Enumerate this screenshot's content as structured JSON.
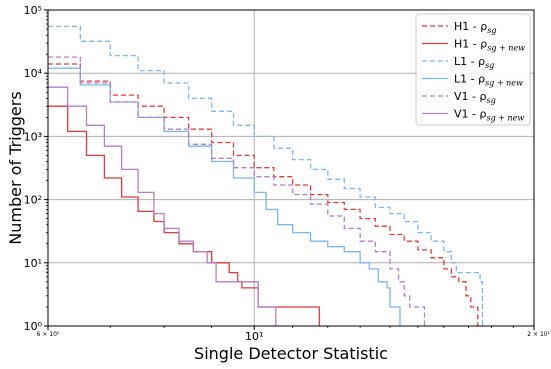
{
  "chart_data": {
    "type": "line",
    "title": "",
    "xlabel": "Single Detector Statistic",
    "ylabel": "Number of Triggers",
    "xscale": "log",
    "yscale": "log",
    "xlim": [
      6,
      20
    ],
    "ylim": [
      1,
      100000
    ],
    "grid": true,
    "legend_position": "top-right",
    "x_ticks": [
      {
        "value": 6,
        "label": "6 × 10⁰",
        "size": "small"
      },
      {
        "value": 10,
        "label": "10¹",
        "size": "normal"
      },
      {
        "value": 20,
        "label": "2 × 10¹",
        "size": "small"
      }
    ],
    "y_ticks": [
      {
        "value": 1,
        "label": "10⁰"
      },
      {
        "value": 10,
        "label": "10¹"
      },
      {
        "value": 100,
        "label": "10²"
      },
      {
        "value": 1000,
        "label": "10³"
      },
      {
        "value": 10000,
        "label": "10⁴"
      },
      {
        "value": 100000,
        "label": "10⁵"
      }
    ],
    "series": [
      {
        "name": "H1 -  ρ",
        "subscript": "sg",
        "color": "#e8383b",
        "dashed": true,
        "points": [
          [
            6.0,
            14000
          ],
          [
            6.5,
            7500
          ],
          [
            7.0,
            4500
          ],
          [
            7.5,
            3000
          ],
          [
            8.0,
            2000
          ],
          [
            8.5,
            1300
          ],
          [
            9.0,
            800
          ],
          [
            9.5,
            500
          ],
          [
            10.0,
            320
          ],
          [
            10.5,
            230
          ],
          [
            11.0,
            170
          ],
          [
            11.5,
            120
          ],
          [
            12.0,
            90
          ],
          [
            12.5,
            70
          ],
          [
            13.0,
            50
          ],
          [
            13.5,
            38
          ],
          [
            14.0,
            28
          ],
          [
            14.5,
            22
          ],
          [
            15.0,
            16
          ],
          [
            15.5,
            12
          ],
          [
            16.0,
            8
          ],
          [
            16.3,
            6
          ],
          [
            16.6,
            5
          ],
          [
            16.9,
            3
          ],
          [
            17.1,
            2
          ],
          [
            17.35,
            2
          ],
          [
            17.4,
            1
          ]
        ]
      },
      {
        "name": "H1 -  ρ",
        "subscript": "sg + new",
        "color": "#e8383b",
        "dashed": false,
        "points": [
          [
            6.0,
            3000
          ],
          [
            6.3,
            1200
          ],
          [
            6.6,
            500
          ],
          [
            6.9,
            220
          ],
          [
            7.2,
            110
          ],
          [
            7.5,
            65
          ],
          [
            7.8,
            45
          ],
          [
            8.0,
            30
          ],
          [
            8.3,
            20
          ],
          [
            8.6,
            15
          ],
          [
            9.0,
            10
          ],
          [
            9.4,
            7
          ],
          [
            9.6,
            5
          ],
          [
            9.7,
            4
          ],
          [
            10.0,
            4
          ],
          [
            10.1,
            2
          ],
          [
            11.0,
            2
          ],
          [
            11.7,
            2
          ],
          [
            11.75,
            1
          ]
        ]
      },
      {
        "name": "L1 -  ρ",
        "subscript": "sg",
        "color": "#7ab8ee",
        "dashed": true,
        "points": [
          [
            6.0,
            55000
          ],
          [
            6.5,
            32000
          ],
          [
            7.0,
            19000
          ],
          [
            7.5,
            11000
          ],
          [
            8.0,
            7000
          ],
          [
            8.5,
            4000
          ],
          [
            9.0,
            2500
          ],
          [
            9.5,
            1500
          ],
          [
            10.0,
            1000
          ],
          [
            10.5,
            650
          ],
          [
            11.0,
            430
          ],
          [
            11.5,
            300
          ],
          [
            12.0,
            210
          ],
          [
            12.5,
            150
          ],
          [
            13.0,
            110
          ],
          [
            13.5,
            75
          ],
          [
            14.0,
            60
          ],
          [
            14.5,
            45
          ],
          [
            15.0,
            30
          ],
          [
            15.5,
            22
          ],
          [
            16.0,
            15
          ],
          [
            16.3,
            10
          ],
          [
            16.5,
            7
          ],
          [
            17.0,
            7
          ],
          [
            17.3,
            7
          ],
          [
            17.5,
            5
          ],
          [
            17.6,
            1
          ]
        ]
      },
      {
        "name": "L1 -  ρ",
        "subscript": "sg + new",
        "color": "#7ab8ee",
        "dashed": false,
        "points": [
          [
            6.0,
            12000
          ],
          [
            6.5,
            6500
          ],
          [
            7.0,
            3500
          ],
          [
            7.5,
            2000
          ],
          [
            8.0,
            1200
          ],
          [
            8.5,
            700
          ],
          [
            9.0,
            400
          ],
          [
            9.5,
            220
          ],
          [
            10.0,
            130
          ],
          [
            10.3,
            70
          ],
          [
            10.6,
            40
          ],
          [
            11.0,
            30
          ],
          [
            11.5,
            22
          ],
          [
            12.0,
            18
          ],
          [
            12.5,
            15
          ],
          [
            13.0,
            10
          ],
          [
            13.3,
            8
          ],
          [
            13.6,
            5
          ],
          [
            13.9,
            4
          ],
          [
            14.0,
            2
          ],
          [
            14.3,
            2
          ],
          [
            14.35,
            1
          ]
        ]
      },
      {
        "name": "V1 -  ρ",
        "subscript": "sg",
        "color": "#b57fc9",
        "dashed": true,
        "points": [
          [
            6.0,
            18000
          ],
          [
            6.5,
            7000
          ],
          [
            7.0,
            3500
          ],
          [
            7.5,
            2000
          ],
          [
            8.0,
            1300
          ],
          [
            8.5,
            750
          ],
          [
            9.0,
            450
          ],
          [
            9.5,
            320
          ],
          [
            10.0,
            230
          ],
          [
            10.5,
            170
          ],
          [
            11.0,
            120
          ],
          [
            11.5,
            85
          ],
          [
            12.0,
            55
          ],
          [
            12.5,
            35
          ],
          [
            13.0,
            22
          ],
          [
            13.5,
            15
          ],
          [
            14.0,
            8
          ],
          [
            14.3,
            5
          ],
          [
            14.5,
            3
          ],
          [
            14.7,
            2
          ],
          [
            15.2,
            2
          ],
          [
            15.25,
            1
          ]
        ]
      },
      {
        "name": "V1 -  ρ",
        "subscript": "sg + new",
        "color": "#b57fc9",
        "dashed": false,
        "points": [
          [
            6.0,
            6000
          ],
          [
            6.3,
            3000
          ],
          [
            6.6,
            1500
          ],
          [
            6.9,
            700
          ],
          [
            7.2,
            300
          ],
          [
            7.5,
            130
          ],
          [
            7.8,
            60
          ],
          [
            8.0,
            35
          ],
          [
            8.3,
            22
          ],
          [
            8.6,
            15
          ],
          [
            8.9,
            10
          ],
          [
            9.1,
            5
          ],
          [
            9.5,
            5
          ],
          [
            10.0,
            5
          ],
          [
            10.1,
            2
          ],
          [
            10.5,
            2
          ],
          [
            10.55,
            1
          ]
        ]
      }
    ]
  }
}
